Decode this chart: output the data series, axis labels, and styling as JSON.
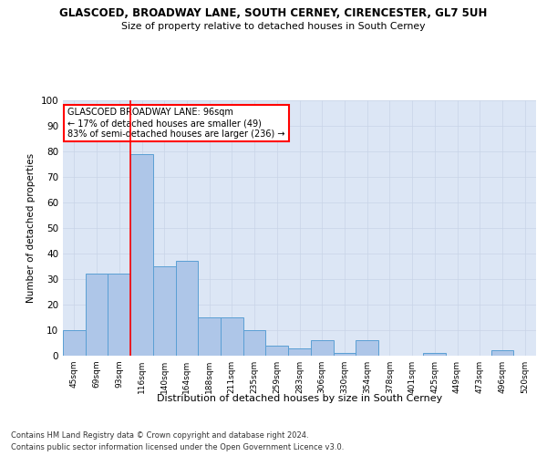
{
  "title1": "GLASCOED, BROADWAY LANE, SOUTH CERNEY, CIRENCESTER, GL7 5UH",
  "title2": "Size of property relative to detached houses in South Cerney",
  "xlabel": "Distribution of detached houses by size in South Cerney",
  "ylabel": "Number of detached properties",
  "categories": [
    "45sqm",
    "69sqm",
    "93sqm",
    "116sqm",
    "140sqm",
    "164sqm",
    "188sqm",
    "211sqm",
    "235sqm",
    "259sqm",
    "283sqm",
    "306sqm",
    "330sqm",
    "354sqm",
    "378sqm",
    "401sqm",
    "425sqm",
    "449sqm",
    "473sqm",
    "496sqm",
    "520sqm"
  ],
  "values": [
    10,
    32,
    32,
    79,
    35,
    37,
    15,
    15,
    10,
    4,
    3,
    6,
    1,
    6,
    0,
    0,
    1,
    0,
    0,
    2,
    0
  ],
  "bar_color": "#aec6e8",
  "bar_edge_color": "#5a9fd4",
  "vline_x": 2.5,
  "vline_color": "red",
  "annotation_text": "GLASCOED BROADWAY LANE: 96sqm\n← 17% of detached houses are smaller (49)\n83% of semi-detached houses are larger (236) →",
  "annotation_box_color": "white",
  "annotation_box_edge_color": "red",
  "ylim": [
    0,
    100
  ],
  "yticks": [
    0,
    10,
    20,
    30,
    40,
    50,
    60,
    70,
    80,
    90,
    100
  ],
  "grid_color": "#c8d4e8",
  "bg_color": "#dce6f5",
  "footnote1": "Contains HM Land Registry data © Crown copyright and database right 2024.",
  "footnote2": "Contains public sector information licensed under the Open Government Licence v3.0."
}
